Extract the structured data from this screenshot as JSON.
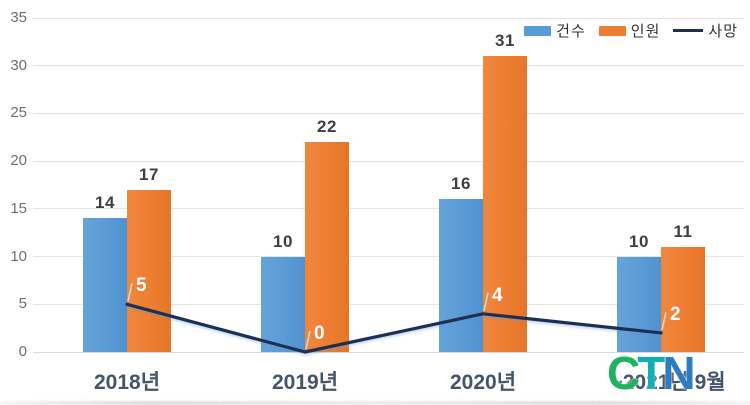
{
  "chart_data": {
    "type": "bar+line",
    "title": "",
    "xlabel": "",
    "ylabel": "",
    "categories": [
      "2018년",
      "2019년",
      "2020년",
      "~2021년 9월"
    ],
    "series": [
      {
        "key": "cases",
        "name": "건수",
        "type": "bar",
        "color": "#5B9BD5",
        "values": [
          14,
          10,
          16,
          10
        ]
      },
      {
        "key": "persons",
        "name": "인원",
        "type": "bar",
        "color": "#ED7D31",
        "values": [
          17,
          22,
          31,
          11
        ]
      },
      {
        "key": "deaths",
        "name": "사망",
        "type": "line",
        "color": "#1E2F54",
        "values": [
          5,
          0,
          4,
          2
        ]
      }
    ],
    "ylim": [
      0,
      35
    ],
    "yticks": [
      0,
      5,
      10,
      15,
      20,
      25,
      30,
      35
    ],
    "grid": true,
    "legend_position": "top-right",
    "colors": {
      "grid": "#E4E4E4",
      "y_tick_label": "#6F6F6F",
      "bar_label": "#3F3F3F",
      "line_label": "#FFFFFF",
      "x_label": "#44546A",
      "leader_line": "#D9D9D9"
    }
  },
  "watermark": {
    "text": "CTN",
    "letters": [
      {
        "char": "C",
        "color": "#1FB25F"
      },
      {
        "char": "T",
        "color": "#10AFB5"
      },
      {
        "char": "N",
        "color": "#2E7CC0"
      }
    ]
  }
}
